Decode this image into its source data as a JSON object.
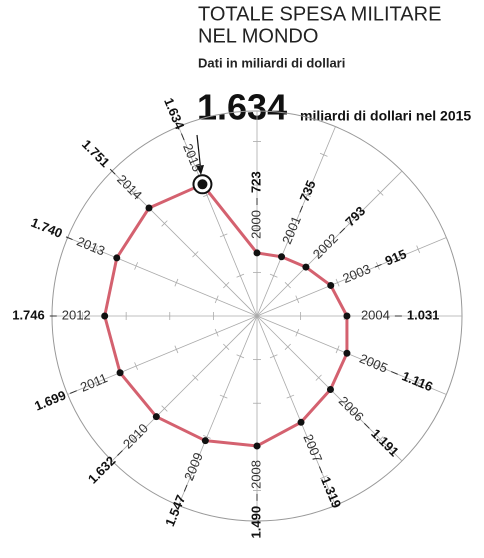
{
  "chart_data": {
    "type": "radar",
    "title": [
      "TOTALE SPESA MILITARE",
      "NEL MONDO"
    ],
    "subtitle": "Dati in miliardi di dollari",
    "annotation": {
      "value_label": "1.634",
      "text": "miliardi di dollari  nel 2015"
    },
    "categories": [
      "2000",
      "2001",
      "2002",
      "2003",
      "2004",
      "2005",
      "2006",
      "2007",
      "2008",
      "2009",
      "2010",
      "2011",
      "2012",
      "2013",
      "2014",
      "2015"
    ],
    "values": [
      723,
      735,
      793,
      915,
      1031,
      1116,
      1191,
      1319,
      1490,
      1547,
      1632,
      1699,
      1746,
      1740,
      1751,
      1634
    ],
    "value_labels": [
      "723",
      "735",
      "793",
      "915",
      "1.031",
      "1.116",
      "1.191",
      "1.319",
      "1.490",
      "1.547",
      "1.632",
      "1.699",
      "1.746",
      "1.740",
      "1.751",
      "1.634"
    ],
    "color": "#d4616f",
    "rlim": [
      0,
      2350
    ],
    "rticks": [
      500,
      1000,
      1500,
      2000
    ]
  }
}
